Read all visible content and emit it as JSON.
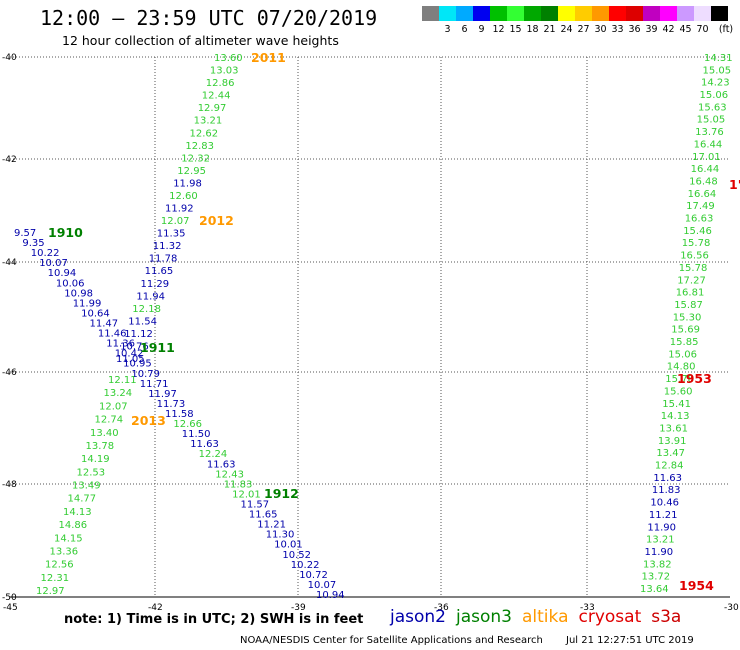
{
  "header": {
    "title": "12:00 – 23:59 UTC 07/20/2019",
    "subtitle": "12 hour collection of altimeter wave heights"
  },
  "legend": {
    "unit": "(ft)",
    "items": [
      {
        "color": "#7f7f7f",
        "label": ""
      },
      {
        "color": "#00e7f7",
        "label": "3"
      },
      {
        "color": "#00aaff",
        "label": "6"
      },
      {
        "color": "#0000f0",
        "label": "9"
      },
      {
        "color": "#00c000",
        "label": "12"
      },
      {
        "color": "#33ff33",
        "label": "15"
      },
      {
        "color": "#00a800",
        "label": "18"
      },
      {
        "color": "#008000",
        "label": "21"
      },
      {
        "color": "#ffff00",
        "label": "24"
      },
      {
        "color": "#ffcc00",
        "label": "27"
      },
      {
        "color": "#ff9900",
        "label": "30"
      },
      {
        "color": "#ff0000",
        "label": "33"
      },
      {
        "color": "#dd0000",
        "label": "36"
      },
      {
        "color": "#c000c0",
        "label": "39"
      },
      {
        "color": "#ff00ff",
        "label": "42"
      },
      {
        "color": "#cc99ff",
        "label": "45"
      },
      {
        "color": "#eeddff",
        "label": "70"
      },
      {
        "color": "#000000",
        "label": ""
      }
    ]
  },
  "axes": {
    "lat_labels": [
      "-40",
      "-42",
      "-44",
      "-46",
      "-48",
      "-50"
    ],
    "lon_labels": [
      "-45",
      "-42",
      "-39",
      "-36",
      "-33",
      "-30"
    ]
  },
  "colors": {
    "jason2": "#0000aa",
    "jason3": "#33cc33",
    "jason3_label": "#008000",
    "altika": "#ff9900",
    "cryosat": "#e00000",
    "s3a": "#cc0000"
  },
  "pass_labels": [
    {
      "text": "2011",
      "color": "altika"
    },
    {
      "text": "2012",
      "color": "altika"
    },
    {
      "text": "1910",
      "color": "jason3_label"
    },
    {
      "text": "1911",
      "color": "jason3_label"
    },
    {
      "text": "2013",
      "color": "altika"
    },
    {
      "text": "1912",
      "color": "jason3_label"
    },
    {
      "text": "1953",
      "color": "cryosat"
    },
    {
      "text": "1954",
      "color": "cryosat"
    },
    {
      "text": "1'",
      "color": "cryosat"
    }
  ],
  "tracks": {
    "altika_2011_2012": {
      "heights": [
        "13.60",
        "13.03",
        "12.86",
        "12.44",
        "12.97",
        "13.21",
        "12.62",
        "12.83",
        "12.32",
        "12.95",
        "11.98",
        "12.60",
        "11.92",
        "12.07",
        "11.35",
        "11.32",
        "11.78",
        "11.65",
        "11.29",
        "11.94",
        "12.18",
        "11.54",
        "11.12",
        "10.76",
        "11.05"
      ],
      "colors": [
        "jason3",
        "jason3",
        "jason3",
        "jason3",
        "jason3",
        "jason3",
        "jason3",
        "jason3",
        "jason3",
        "jason3",
        "jason2",
        "jason3",
        "jason2",
        "jason3",
        "jason2",
        "jason2",
        "jason2",
        "jason2",
        "jason2",
        "jason2",
        "jason3",
        "jason2",
        "jason2",
        "jason2",
        "jason2"
      ]
    },
    "jason3_1910_1911": {
      "heights": [
        "9.57",
        "9.35",
        "10.22",
        "10.07",
        "10.94",
        "10.06",
        "10.98",
        "11.99",
        "10.64",
        "11.47",
        "11.46",
        "11.36",
        "10.42",
        "10.95",
        "10.79",
        "11.71",
        "11.97",
        "11.73",
        "11.58",
        "12.66",
        "11.50",
        "11.63",
        "12.24",
        "11.63",
        "12.43",
        "11.83",
        "12.01",
        "11.57",
        "11.65",
        "11.21",
        "11.30",
        "10.01",
        "10.52",
        "10.22",
        "10.72",
        "10.07",
        "10.94"
      ],
      "colors": [
        "jason2",
        "jason2",
        "jason2",
        "jason2",
        "jason2",
        "jason2",
        "jason2",
        "jason2",
        "jason2",
        "jason2",
        "jason2",
        "jason2",
        "jason2",
        "jason2",
        "jason2",
        "jason2",
        "jason2",
        "jason2",
        "jason2",
        "jason3",
        "jason2",
        "jason2",
        "jason3",
        "jason2",
        "jason3",
        "jason3",
        "jason3",
        "jason2",
        "jason2",
        "jason2",
        "jason2",
        "jason2",
        "jason2",
        "jason2",
        "jason2",
        "jason2",
        "jason2"
      ]
    },
    "altika_2013": {
      "heights": [
        "12.11",
        "13.24",
        "12.07",
        "12.74",
        "13.40",
        "13.78",
        "14.19",
        "12.53",
        "13.49",
        "14.77",
        "14.13",
        "14.86",
        "14.15",
        "13.36",
        "12.56",
        "12.31",
        "12.97"
      ],
      "colors": [
        "jason3",
        "jason3",
        "jason3",
        "jason3",
        "jason3",
        "jason3",
        "jason3",
        "jason3",
        "jason3",
        "jason3",
        "jason3",
        "jason3",
        "jason3",
        "jason3",
        "jason3",
        "jason3",
        "jason3"
      ]
    },
    "cryosat_1953_1954": {
      "heights": [
        "14.31",
        "15.05",
        "14.23",
        "15.06",
        "15.63",
        "15.05",
        "13.76",
        "16.44",
        "17.01",
        "16.44",
        "16.48",
        "16.64",
        "17.49",
        "16.63",
        "15.46",
        "15.78",
        "16.56",
        "15.78",
        "17.27",
        "16.81",
        "15.87",
        "15.30",
        "15.69",
        "15.85",
        "15.06",
        "14.80",
        "15.78",
        "15.60",
        "15.41",
        "14.13",
        "13.61",
        "13.91",
        "13.47",
        "12.84",
        "11.63",
        "11.83",
        "10.46",
        "11.21",
        "11.90",
        "13.21",
        "11.90",
        "13.82",
        "13.72",
        "13.64"
      ],
      "colors": [
        "jason3",
        "jason3",
        "jason3",
        "jason3",
        "jason3",
        "jason3",
        "jason3",
        "jason3",
        "jason3",
        "jason3",
        "jason3",
        "jason3",
        "jason3",
        "jason3",
        "jason3",
        "jason3",
        "jason3",
        "jason3",
        "jason3",
        "jason3",
        "jason3",
        "jason3",
        "jason3",
        "jason3",
        "jason3",
        "jason3",
        "jason3",
        "jason3",
        "jason3",
        "jason3",
        "jason3",
        "jason3",
        "jason3",
        "jason3",
        "jason2",
        "jason2",
        "jason2",
        "jason2",
        "jason2",
        "jason3",
        "jason2",
        "jason3",
        "jason3",
        "jason3"
      ]
    }
  },
  "footer": {
    "note": "note:  1) Time is in UTC;  2) SWH is in feet",
    "satellites": [
      {
        "name": "jason2",
        "color": "#0000aa"
      },
      {
        "name": "jason3",
        "color": "#008000"
      },
      {
        "name": "altika",
        "color": "#ff9900"
      },
      {
        "name": "cryosat",
        "color": "#e00000"
      },
      {
        "name": "s3a",
        "color": "#cc0000"
      }
    ],
    "credit": "NOAA/NESDIS Center for Satellite Applications and Research",
    "timestamp": "Jul 21 12:27:51 UTC 2019"
  }
}
